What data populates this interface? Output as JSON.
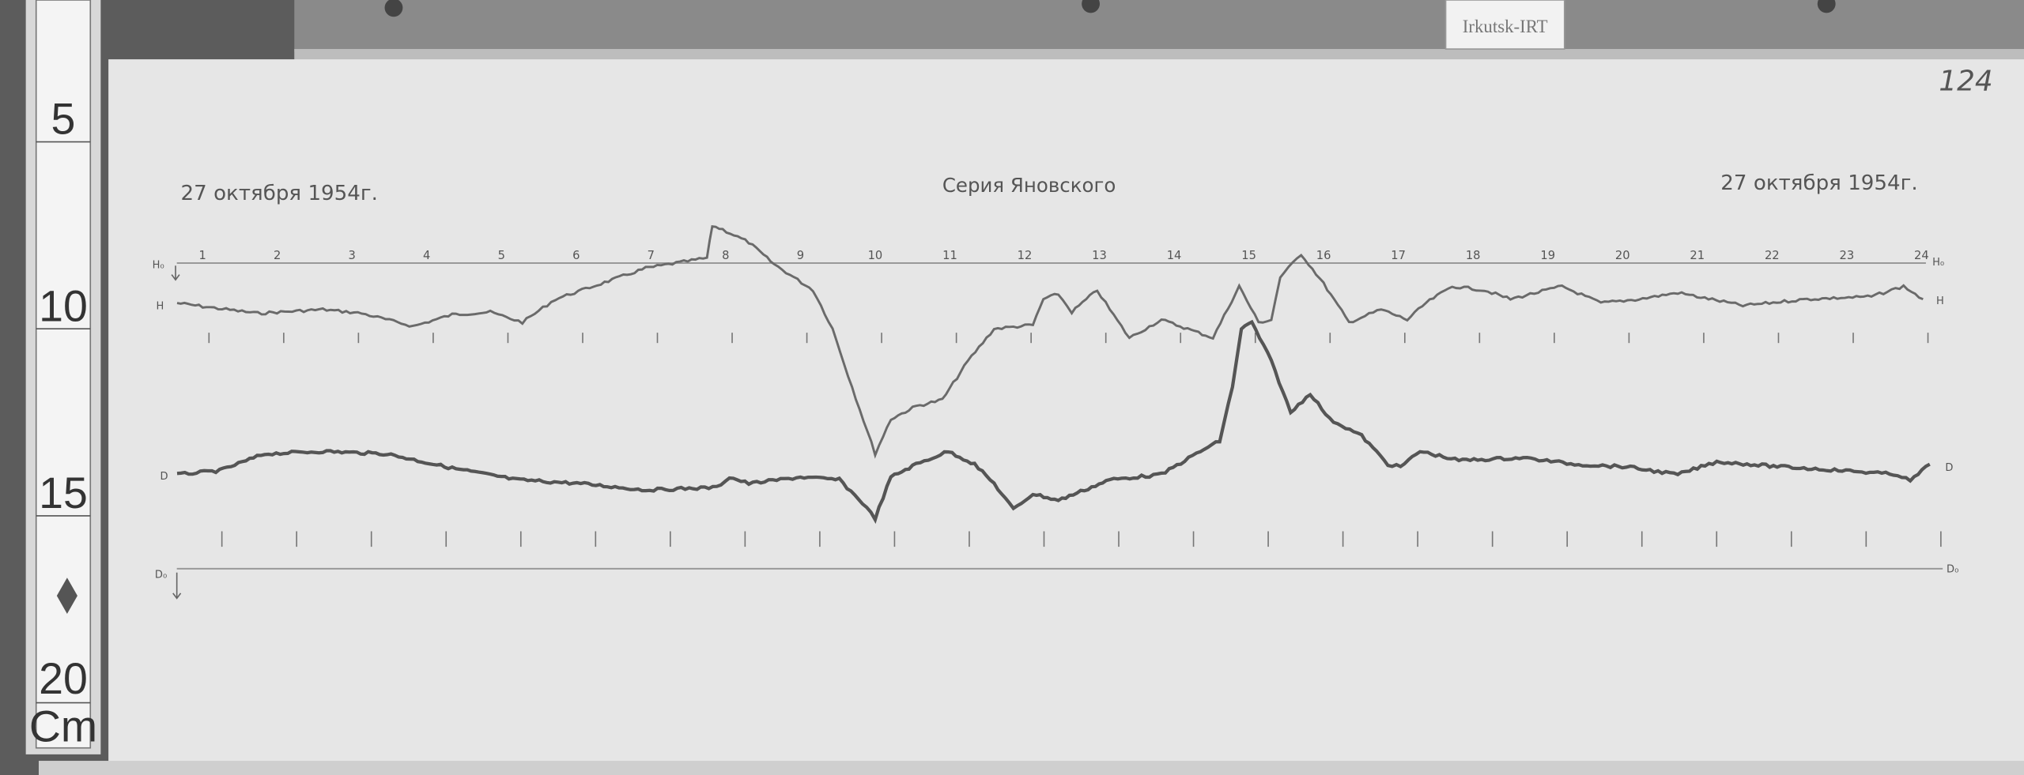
{
  "label_tag": "Irkutsk-IRT",
  "sheet_number": "124",
  "header": {
    "date_left": "27 октября 1954г.",
    "title": "Серия Яновского",
    "date_right": "27 октября 1954г."
  },
  "ruler": {
    "marks": [
      "5",
      "10",
      "15",
      "20"
    ],
    "unit": "Cm"
  },
  "chart_data": {
    "type": "line",
    "title": "Серия Яновского",
    "x_ticks": [
      "1",
      "2",
      "3",
      "4",
      "5",
      "6",
      "7",
      "8",
      "9",
      "10",
      "11",
      "12",
      "13",
      "14",
      "15",
      "16",
      "17",
      "18",
      "19",
      "20",
      "21",
      "22",
      "23",
      "24"
    ],
    "baselines": {
      "H": "H₀",
      "D": "D₀"
    },
    "grid": false,
    "series": [
      {
        "name": "H",
        "points": [
          [
            0.66,
            -31
          ],
          [
            1.05,
            -34
          ],
          [
            1.74,
            -39
          ],
          [
            2.61,
            -36
          ],
          [
            3.13,
            -39
          ],
          [
            3.82,
            -49
          ],
          [
            4.34,
            -40
          ],
          [
            4.85,
            -38
          ],
          [
            5.28,
            -46
          ],
          [
            5.72,
            -28
          ],
          [
            6.23,
            -18
          ],
          [
            6.93,
            -4
          ],
          [
            7.44,
            1
          ],
          [
            7.75,
            4
          ],
          [
            7.82,
            29
          ],
          [
            7.96,
            26
          ],
          [
            8.31,
            16
          ],
          [
            8.65,
            -1
          ],
          [
            9.17,
            -21
          ],
          [
            9.43,
            -51
          ],
          [
            9.69,
            -96
          ],
          [
            10.0,
            -148
          ],
          [
            10.21,
            -121
          ],
          [
            10.55,
            -111
          ],
          [
            10.9,
            -106
          ],
          [
            11.24,
            -76
          ],
          [
            11.59,
            -51
          ],
          [
            12.11,
            -48
          ],
          [
            12.25,
            -28
          ],
          [
            12.45,
            -24
          ],
          [
            12.63,
            -38
          ],
          [
            12.97,
            -21
          ],
          [
            13.14,
            -36
          ],
          [
            13.4,
            -58
          ],
          [
            13.83,
            -44
          ],
          [
            14.18,
            -51
          ],
          [
            14.52,
            -58
          ],
          [
            14.87,
            -18
          ],
          [
            15.13,
            -46
          ],
          [
            15.3,
            -44
          ],
          [
            15.42,
            -11
          ],
          [
            15.7,
            7
          ],
          [
            16.0,
            -16
          ],
          [
            16.34,
            -46
          ],
          [
            16.77,
            -36
          ],
          [
            17.12,
            -44
          ],
          [
            17.37,
            -31
          ],
          [
            17.72,
            -18
          ],
          [
            18.15,
            -21
          ],
          [
            18.5,
            -28
          ],
          [
            19.19,
            -18
          ],
          [
            19.71,
            -31
          ],
          [
            20.22,
            -28
          ],
          [
            20.74,
            -23
          ],
          [
            21.61,
            -33
          ],
          [
            22.47,
            -28
          ],
          [
            23.33,
            -26
          ],
          [
            23.76,
            -18
          ],
          [
            24.02,
            -28
          ]
        ]
      },
      {
        "name": "D",
        "points": [
          [
            0.66,
            73
          ],
          [
            1.23,
            76
          ],
          [
            1.83,
            89
          ],
          [
            2.61,
            91
          ],
          [
            3.47,
            89
          ],
          [
            4.34,
            78
          ],
          [
            5.2,
            69
          ],
          [
            6.06,
            66
          ],
          [
            6.93,
            61
          ],
          [
            7.88,
            63
          ],
          [
            8.05,
            71
          ],
          [
            8.31,
            66
          ],
          [
            9.0,
            71
          ],
          [
            9.52,
            69
          ],
          [
            9.83,
            51
          ],
          [
            10.0,
            39
          ],
          [
            10.21,
            71
          ],
          [
            10.55,
            81
          ],
          [
            10.98,
            91
          ],
          [
            11.33,
            81
          ],
          [
            11.59,
            66
          ],
          [
            11.85,
            46
          ],
          [
            12.11,
            58
          ],
          [
            12.45,
            53
          ],
          [
            12.8,
            61
          ],
          [
            13.14,
            69
          ],
          [
            13.83,
            73
          ],
          [
            14.35,
            91
          ],
          [
            14.61,
            99
          ],
          [
            14.78,
            141
          ],
          [
            14.9,
            186
          ],
          [
            15.04,
            191
          ],
          [
            15.3,
            161
          ],
          [
            15.56,
            121
          ],
          [
            15.82,
            136
          ],
          [
            16.08,
            116
          ],
          [
            16.51,
            103
          ],
          [
            16.86,
            81
          ],
          [
            17.03,
            79
          ],
          [
            17.29,
            91
          ],
          [
            17.81,
            84
          ],
          [
            18.67,
            86
          ],
          [
            19.36,
            81
          ],
          [
            20.05,
            79
          ],
          [
            20.74,
            73
          ],
          [
            21.26,
            83
          ],
          [
            22.12,
            79
          ],
          [
            22.99,
            76
          ],
          [
            23.68,
            73
          ],
          [
            23.85,
            68
          ],
          [
            24.11,
            81
          ]
        ]
      }
    ]
  }
}
